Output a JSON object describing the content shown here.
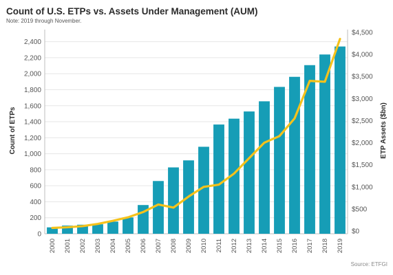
{
  "header": {
    "title": "Count of U.S. ETPs vs. Assets Under Management (AUM)",
    "note": "Note: 2019 through November."
  },
  "footer": {
    "source": "Source: ETFGI"
  },
  "colors": {
    "bar": "#169db6",
    "line": "#f5c21b",
    "grid": "#e6e6e6",
    "axis": "#bdbdbd"
  },
  "chart_data": {
    "type": "bar",
    "title": "Count of U.S. ETPs vs. Assets Under Management (AUM)",
    "subtitle": "Note: 2019 through November.",
    "categories": [
      "2000",
      "2001",
      "2002",
      "2003",
      "2004",
      "2005",
      "2006",
      "2007",
      "2008",
      "2009",
      "2010",
      "2011",
      "2012",
      "2013",
      "2014",
      "2015",
      "2016",
      "2017",
      "2018",
      "2019"
    ],
    "series": [
      {
        "name": "Count of ETPs",
        "chart": "bar",
        "axis": "left",
        "values": [
          80,
          102,
          113,
          119,
          152,
          204,
          359,
          659,
          829,
          917,
          1087,
          1365,
          1438,
          1528,
          1655,
          1835,
          1961,
          2107,
          2240,
          2340
        ]
      },
      {
        "name": "ETP Assets ($bn)",
        "chart": "line",
        "axis": "right",
        "values": [
          70,
          85,
          110,
          160,
          230,
          310,
          430,
          600,
          530,
          780,
          1000,
          1050,
          1300,
          1650,
          2000,
          2150,
          2550,
          3400,
          3380,
          4350
        ]
      }
    ],
    "ylabel": "Count of ETPs",
    "y2label": "ETP Assets ($bn)",
    "ylim": [
      0,
      2500
    ],
    "y2lim": [
      0,
      4500
    ],
    "yticks": [
      "0",
      "200",
      "400",
      "600",
      "800",
      "1,000",
      "1,200",
      "1,400",
      "1,600",
      "1,800",
      "2,000",
      "2,200",
      "2,400"
    ],
    "y2ticks": [
      "$0",
      "$500",
      "$1,000",
      "$1,500",
      "$2,000",
      "$2,500",
      "$3,000",
      "$3,500",
      "$4,000",
      "$4,500"
    ],
    "grid": true
  }
}
